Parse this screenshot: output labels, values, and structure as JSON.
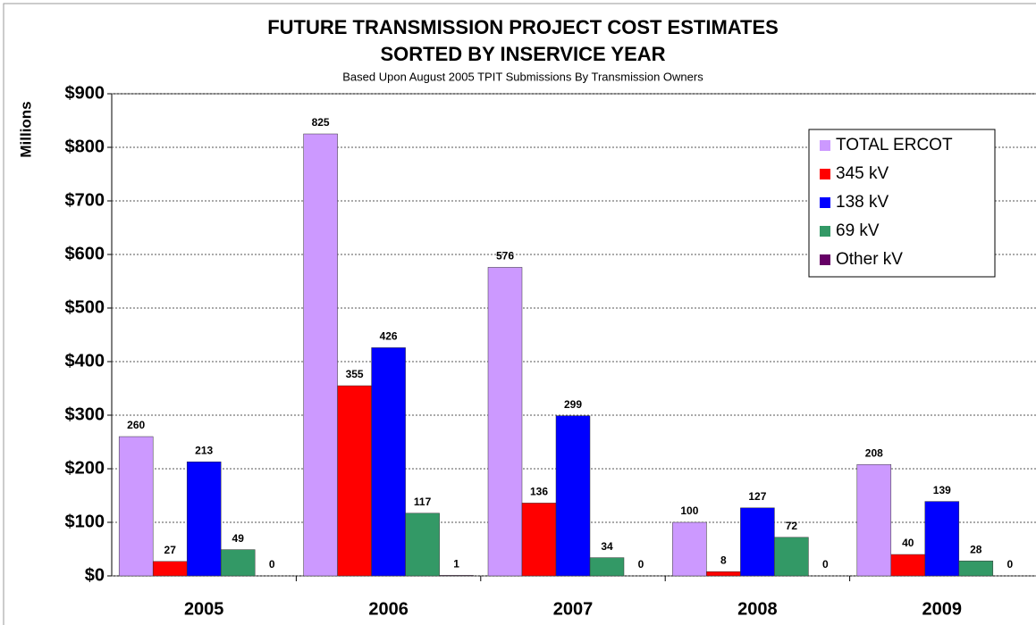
{
  "chart_data": {
    "type": "bar",
    "title": [
      "FUTURE TRANSMISSION PROJECT COST ESTIMATES",
      "SORTED BY INSERVICE YEAR"
    ],
    "subtitle": "Based Upon August 2005 TPIT Submissions By Transmission Owners",
    "y_label": "Millions",
    "categories": [
      "2005",
      "2006",
      "2007",
      "2008",
      "2009"
    ],
    "series": [
      {
        "name": "TOTAL ERCOT",
        "color": "#cc99ff",
        "values": [
          260,
          825,
          576,
          100,
          208
        ]
      },
      {
        "name": "345 kV",
        "color": "#ff0000",
        "values": [
          27,
          355,
          136,
          8,
          40
        ]
      },
      {
        "name": "138 kV",
        "color": "#0000ff",
        "values": [
          213,
          426,
          299,
          127,
          139
        ]
      },
      {
        "name": "69 kV",
        "color": "#339966",
        "values": [
          49,
          117,
          34,
          72,
          28
        ]
      },
      {
        "name": "Other kV",
        "color": "#660066",
        "values": [
          0,
          1,
          0,
          0,
          0
        ]
      }
    ],
    "ylim": [
      0,
      900
    ],
    "yticks": [
      {
        "value": 0,
        "label": "$0"
      },
      {
        "value": 100,
        "label": "$100"
      },
      {
        "value": 200,
        "label": "$200"
      },
      {
        "value": 300,
        "label": "$300"
      },
      {
        "value": 400,
        "label": "$400"
      },
      {
        "value": 500,
        "label": "$500"
      },
      {
        "value": 600,
        "label": "$600"
      },
      {
        "value": 700,
        "label": "$700"
      },
      {
        "value": 800,
        "label": "$800"
      },
      {
        "value": 900,
        "label": "$900"
      }
    ],
    "grid": true,
    "legend": "upper right"
  }
}
